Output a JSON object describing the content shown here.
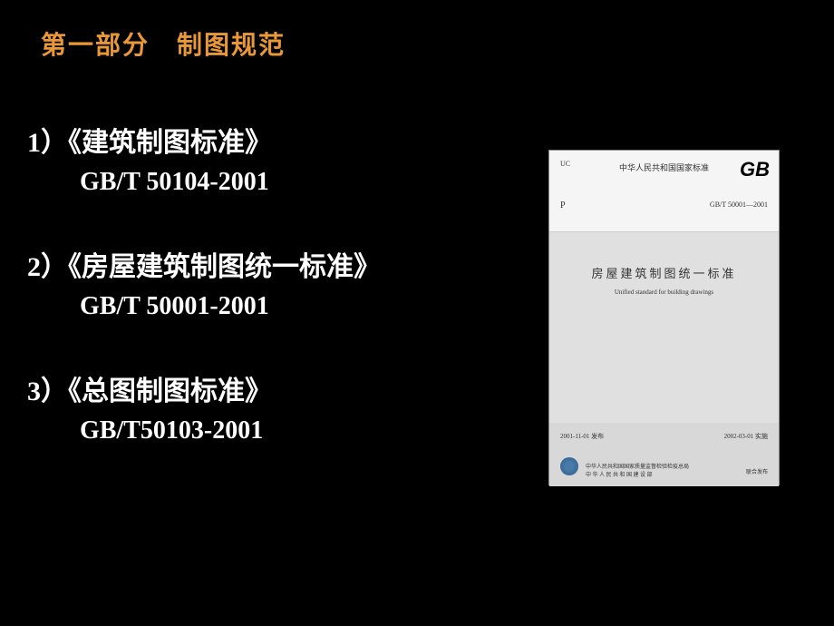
{
  "heading": "第一部分　制图规范",
  "items": [
    {
      "number": "1）",
      "title": "《建筑制图标准》",
      "code": "GB/T 50104-2001"
    },
    {
      "number": "2）",
      "title": "《房屋建筑制图统一标准》",
      "code": "GB/T 50001-2001"
    },
    {
      "number": "3）",
      "title": "《总图制图标准》",
      "code": "GB/T50103-2001"
    }
  ],
  "cover": {
    "uc": "UC",
    "p": "P",
    "header_text": "中华人民共和国国家标准",
    "gb": "GB",
    "code": "GB/T 50001—2001",
    "title_cn": "房屋建筑制图统一标准",
    "title_en": "Unified standard for building drawings",
    "date_left": "2001-11-01 发布",
    "date_right": "2002-03-01 实施",
    "publisher_line1": "中华人民共和国国家质量监督检验检疫总局",
    "publisher_line2": "中 华 人 民 共 和 国 建 设 部",
    "pub_right": "联合发布"
  },
  "colors": {
    "background": "#000000",
    "heading_color": "#e89838",
    "text_color": "#ffffff",
    "cover_bg": "#e8e8e8"
  }
}
